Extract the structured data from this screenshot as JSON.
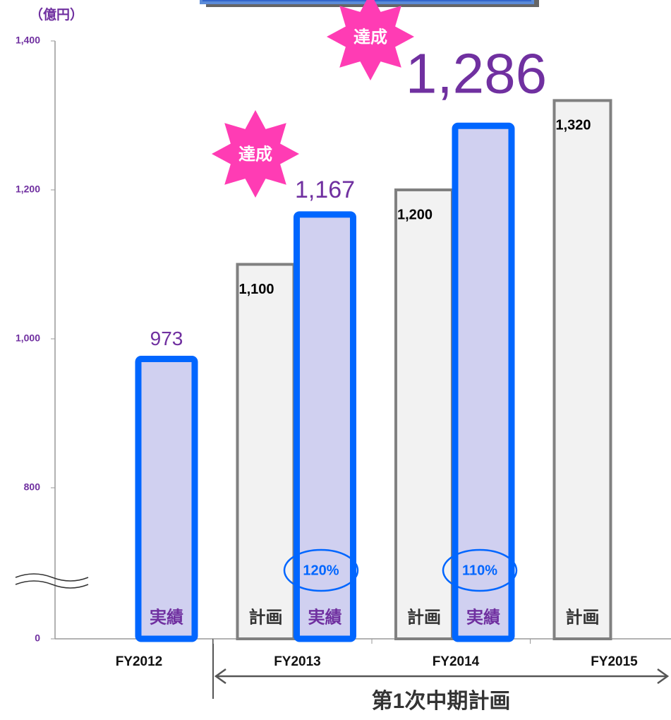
{
  "chart_data": {
    "type": "bar",
    "unit_label": "（億円）",
    "categories": [
      "FY2012",
      "FY2013",
      "FY2014",
      "FY2015"
    ],
    "series": [
      {
        "name": "計画",
        "color": "#f2f2f2",
        "values": [
          null,
          1100,
          1200,
          1320
        ],
        "value_labels": [
          null,
          "1,100",
          "1,200",
          "1,320"
        ]
      },
      {
        "name": "実績",
        "color": "#0066ff",
        "values": [
          973,
          1167,
          1286,
          null
        ],
        "value_labels": [
          "973",
          "1,167",
          "1,286",
          null
        ]
      }
    ],
    "ylim": [
      0,
      1400
    ],
    "yticks": [
      0,
      800,
      {
        "value": 1000,
        "label": "1,000"
      },
      {
        "value": 1200,
        "label": "1,200"
      },
      {
        "value": 1400,
        "label": "1,400"
      }
    ],
    "axis_break": true,
    "annotations": {
      "achieved": [
        "達成",
        "達成"
      ],
      "ratios": [
        "120%",
        "110%"
      ],
      "period": "第1次中期計画"
    }
  }
}
